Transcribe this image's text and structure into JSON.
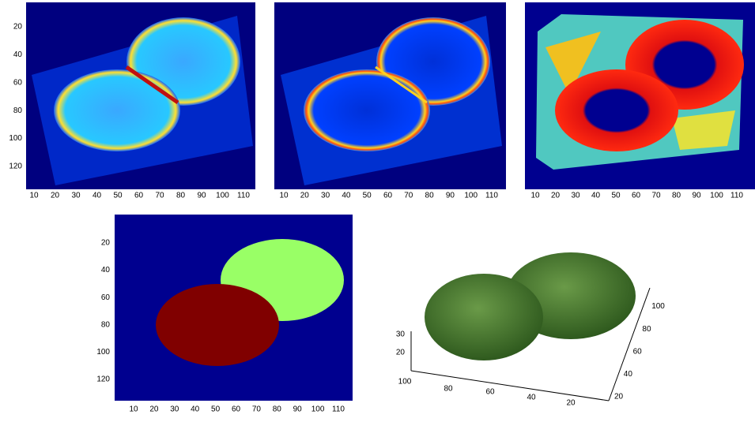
{
  "panels": [
    {
      "xticks": [
        10,
        20,
        30,
        40,
        50,
        60,
        70,
        80,
        90,
        100,
        110
      ],
      "yticks": [
        20,
        40,
        60,
        80,
        100,
        120
      ]
    },
    {
      "xticks": [
        10,
        20,
        30,
        40,
        50,
        60,
        70,
        80,
        90,
        100,
        110
      ]
    },
    {
      "xticks": [
        10,
        20,
        30,
        40,
        50,
        60,
        70,
        80,
        90,
        100,
        110
      ]
    },
    {
      "xticks": [
        10,
        20,
        30,
        40,
        50,
        60,
        70,
        80,
        90,
        100,
        110
      ],
      "yticks": [
        20,
        40,
        60,
        80,
        100,
        120
      ]
    }
  ],
  "surface": {
    "zticks": [
      30,
      20
    ],
    "xticks": [
      100,
      80,
      60,
      40,
      20
    ],
    "yticks": [
      20,
      40,
      60,
      80,
      100
    ]
  }
}
